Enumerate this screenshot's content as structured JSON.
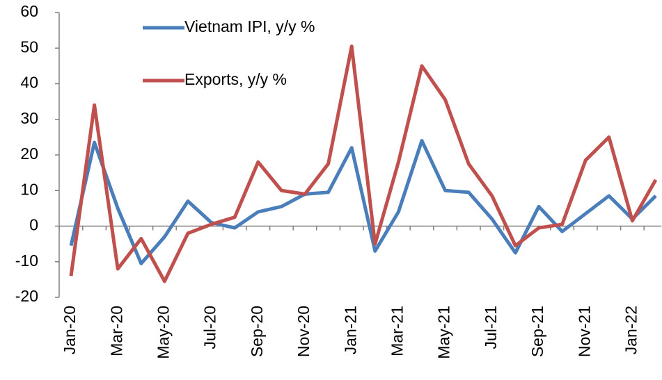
{
  "chart_data": {
    "type": "line",
    "categories": [
      "Jan-20",
      null,
      "Mar-20",
      null,
      "May-20",
      null,
      "Jul-20",
      null,
      "Sep-20",
      null,
      "Nov-20",
      null,
      "Jan-21",
      null,
      "Mar-21",
      null,
      "May-21",
      null,
      "Jul-21",
      null,
      "Sep-21",
      null,
      "Nov-21",
      null,
      "Jan-22",
      null
    ],
    "series": [
      {
        "name": "Vietnam IPI, y/y %",
        "color": "#4a7ebb",
        "values": [
          -5.5,
          23.5,
          5,
          -10.5,
          -3,
          7,
          1,
          -0.5,
          4,
          5.5,
          9,
          9.5,
          22,
          -7,
          4,
          24,
          10,
          9.5,
          2,
          -7.5,
          5.5,
          -1.5,
          3.5,
          8.5,
          2,
          8.5
        ]
      },
      {
        "name": "Exports, y/y %",
        "color": "#c0504d",
        "values": [
          -14,
          34,
          -12,
          -3.5,
          -15.5,
          -2,
          0.5,
          2.5,
          18,
          10,
          9,
          17.5,
          50.5,
          -5,
          18,
          45,
          35.5,
          17.5,
          8.5,
          -5.5,
          -0.5,
          0.5,
          18.5,
          25,
          1.5,
          13
        ]
      }
    ],
    "ylim": [
      -20,
      60
    ],
    "yticks": [
      -20,
      -10,
      0,
      10,
      20,
      30,
      40,
      50,
      60
    ],
    "grid": false,
    "legend": "upper center"
  }
}
